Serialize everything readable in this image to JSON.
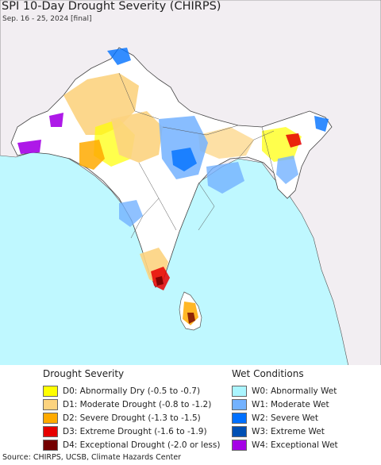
{
  "header": {
    "title": "SPI 10-Day Drought Severity (CHIRPS)",
    "subtitle": "Sep. 16 - 25, 2024 [final]"
  },
  "legend": {
    "drought": {
      "heading": "Drought Severity",
      "items": [
        {
          "label": "D0: Abnormally Dry (-0.5 to -0.7)",
          "color": "#ffff00"
        },
        {
          "label": "D1: Moderate Drought (-0.8 to -1.2)",
          "color": "#fcd37f"
        },
        {
          "label": "D2: Severe Drought (-1.3 to -1.5)",
          "color": "#ffaa00"
        },
        {
          "label": "D3: Extreme Drought (-1.6 to -1.9)",
          "color": "#e60000"
        },
        {
          "label": "D4: Exceptional Drought (-2.0 or less)",
          "color": "#730000"
        }
      ]
    },
    "wet": {
      "heading": "Wet Conditions",
      "items": [
        {
          "label": "W0: Abnormally Wet",
          "color": "#aaf5ff"
        },
        {
          "label": "W1: Moderate Wet",
          "color": "#73b2ff"
        },
        {
          "label": "W2: Severe Wet",
          "color": "#0070ff"
        },
        {
          "label": "W3: Extreme Wet",
          "color": "#0050b4"
        },
        {
          "label": "W4: Exceptional Wet",
          "color": "#a500e6"
        }
      ]
    }
  },
  "map": {
    "colors": {
      "ocean": "#bff8ff",
      "land_outside": "#f2eef2",
      "land_inside": "#ffffff",
      "borders": "#333333"
    }
  },
  "source": "Source: CHIRPS, UCSB, Climate Hazards Center"
}
